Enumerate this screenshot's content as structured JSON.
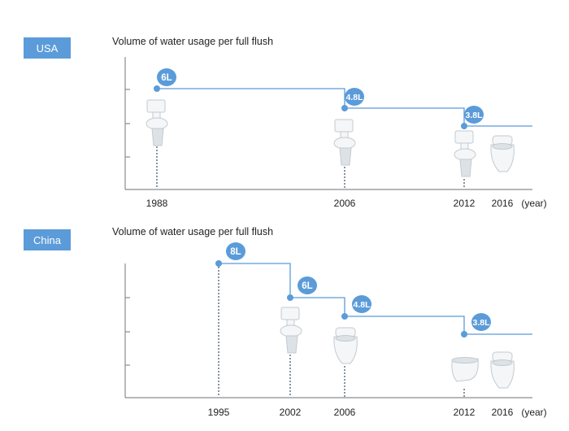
{
  "chart_data": [
    {
      "type": "line",
      "region": "USA",
      "title": "Volume of water usage per full flush",
      "x_unit": "(year)",
      "tick_labels": [
        "1988",
        "2006",
        "2012",
        "2016"
      ],
      "series": [
        {
          "x": [
            1988,
            2006,
            2012
          ],
          "values": [
            6,
            4.8,
            3.8
          ],
          "labels": [
            "6L",
            "4.8L",
            "3.8L"
          ]
        }
      ],
      "toilets": [
        {
          "year": 1988,
          "kind": "two-piece-toilet-icon"
        },
        {
          "year": 2006,
          "kind": "two-piece-toilet-icon"
        },
        {
          "year": 2012,
          "kind": "two-piece-toilet-icon"
        },
        {
          "year": 2016,
          "kind": "one-piece-toilet-icon"
        }
      ],
      "grid": false,
      "colors": {
        "accent": "#5b9bd9",
        "axis": "#8c8c8c",
        "dots": "#6b7a8a"
      }
    },
    {
      "type": "line",
      "region": "China",
      "title": "Volume of water usage per full flush",
      "x_unit": "(year)",
      "tick_labels": [
        "1995",
        "2002",
        "2006",
        "2012",
        "2016"
      ],
      "series": [
        {
          "x": [
            1995,
            2002,
            2006,
            2012
          ],
          "values": [
            8,
            6,
            4.8,
            3.8
          ],
          "labels": [
            "8L",
            "6L",
            "4.8L",
            "3.8L"
          ]
        }
      ],
      "toilets": [
        {
          "year": 2002,
          "kind": "two-piece-toilet-icon"
        },
        {
          "year": 2006,
          "kind": "one-piece-toilet-icon"
        },
        {
          "year": 2012,
          "kind": "wall-toilet-icon"
        },
        {
          "year": 2016,
          "kind": "one-piece-toilet-icon"
        }
      ],
      "grid": false,
      "colors": {
        "accent": "#5b9bd9",
        "axis": "#8c8c8c",
        "dots": "#6b7a8a"
      }
    }
  ]
}
